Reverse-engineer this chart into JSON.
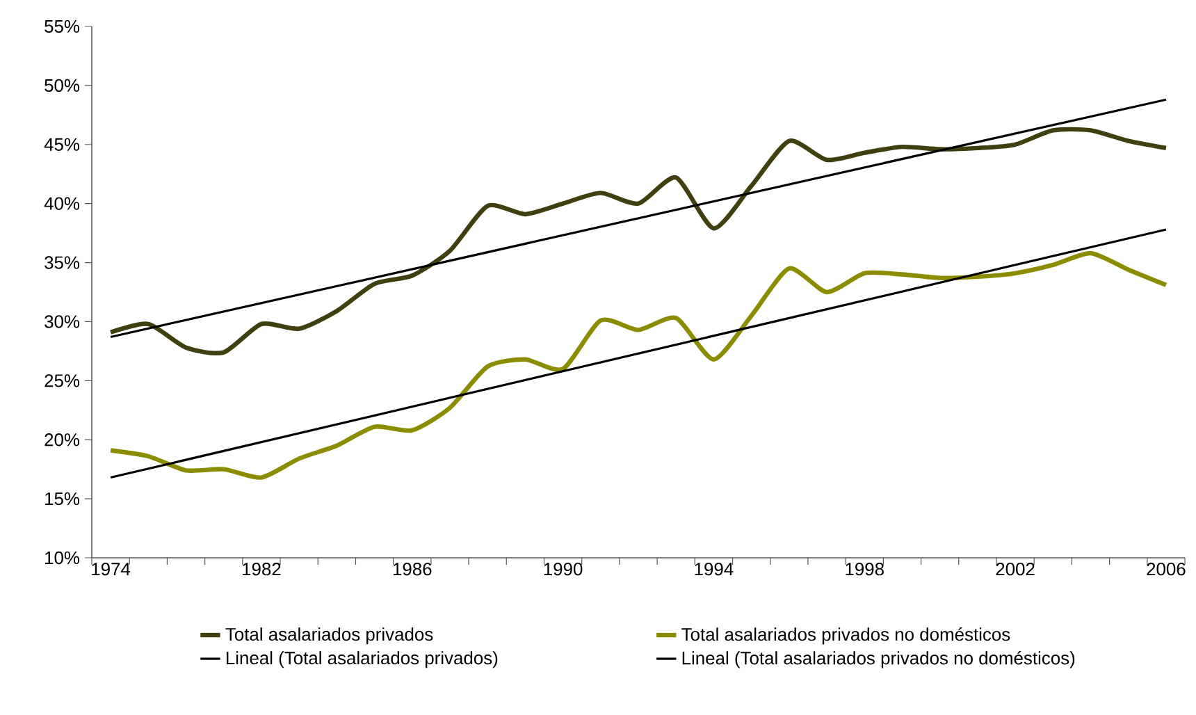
{
  "chart_data": {
    "type": "line",
    "categories": [
      "1974",
      null,
      null,
      null,
      "1982",
      null,
      null,
      null,
      "1986",
      null,
      null,
      null,
      "1990",
      null,
      null,
      null,
      "1994",
      null,
      null,
      null,
      "1998",
      null,
      null,
      null,
      "2002",
      null,
      null,
      null,
      "2006"
    ],
    "series": [
      {
        "name": "Total asalariados privados",
        "color": "#3f3f0f",
        "values": [
          29.1,
          29.8,
          27.8,
          27.4,
          29.8,
          29.4,
          30.9,
          33.2,
          33.9,
          36.0,
          39.8,
          39.1,
          40.0,
          40.9,
          40.0,
          42.2,
          37.9,
          41.5,
          45.3,
          43.7,
          44.3,
          44.8,
          44.6,
          44.7,
          45.0,
          46.2,
          46.2,
          45.3,
          44.7
        ]
      },
      {
        "name": "Total asalariados privados no domésticos",
        "color": "#8c8c00",
        "values": [
          19.1,
          18.6,
          17.4,
          17.5,
          16.8,
          18.4,
          19.5,
          21.1,
          20.8,
          22.7,
          26.2,
          26.8,
          26.0,
          30.1,
          29.3,
          30.3,
          26.8,
          30.5,
          34.5,
          32.5,
          34.1,
          34.0,
          33.7,
          33.8,
          34.1,
          34.8,
          35.8,
          34.4,
          33.1
        ]
      },
      {
        "name": "Lineal (Total asalariados privados)",
        "color": "#000000",
        "values": [
          28.7,
          null,
          null,
          null,
          null,
          null,
          null,
          null,
          null,
          null,
          null,
          null,
          null,
          null,
          null,
          null,
          null,
          null,
          null,
          null,
          null,
          null,
          null,
          null,
          null,
          null,
          null,
          null,
          48.8
        ]
      },
      {
        "name": "Lineal (Total asalariados privados no domésticos)",
        "color": "#000000",
        "values": [
          16.8,
          null,
          null,
          null,
          null,
          null,
          null,
          null,
          null,
          null,
          null,
          null,
          null,
          null,
          null,
          null,
          null,
          null,
          null,
          null,
          null,
          null,
          null,
          null,
          null,
          null,
          null,
          null,
          37.8
        ]
      }
    ],
    "ylim": [
      10,
      55
    ],
    "yticks": [
      {
        "value": 10,
        "label": "10%"
      },
      {
        "value": 15,
        "label": "15%"
      },
      {
        "value": 20,
        "label": "20%"
      },
      {
        "value": 25,
        "label": "25%"
      },
      {
        "value": 30,
        "label": "30%"
      },
      {
        "value": 35,
        "label": "35%"
      },
      {
        "value": 40,
        "label": "40%"
      },
      {
        "value": 45,
        "label": "45%"
      },
      {
        "value": 50,
        "label": "50%"
      },
      {
        "value": 55,
        "label": "55%"
      }
    ],
    "legend": "bottom"
  }
}
